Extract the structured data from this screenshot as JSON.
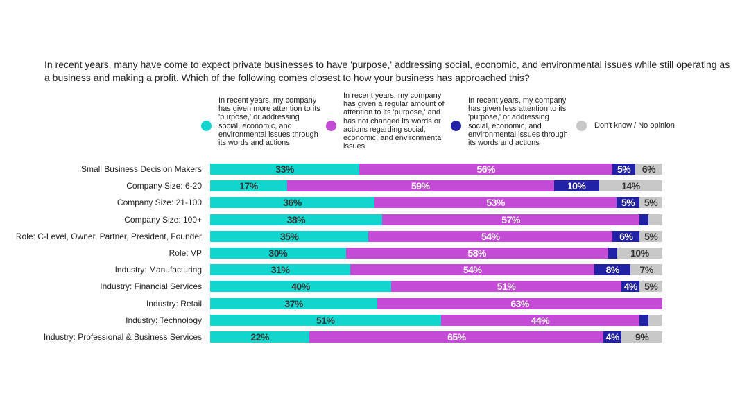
{
  "chart_data": {
    "type": "bar",
    "orientation": "horizontal",
    "stacked": true,
    "title": "In recent years, many have come to expect private businesses to have 'purpose,' addressing social, economic, and environmental issues while still operating as a business and making a profit. Which of the following comes closest to how your business has approached this?",
    "xlim": [
      0,
      100
    ],
    "grid": false,
    "legend_position": "top",
    "categories": [
      "Small Business Decision Makers",
      "Company Size: 6-20",
      "Company Size: 21-100",
      "Company Size: 100+",
      "Role: C-Level, Owner, Partner, President, Founder",
      "Role: VP",
      "Industry: Manufacturing",
      "Industry: Financial Services",
      "Industry: Retail",
      "Industry: Technology",
      "Industry: Professional & Business Services"
    ],
    "series": [
      {
        "name": "In recent years, my company has given more attention to its 'purpose,' or addressing social, economic, and environmental issues through its words and actions",
        "color": "#12d6ce",
        "label_color": "#333333",
        "values": [
          33,
          17,
          36,
          38,
          35,
          30,
          31,
          40,
          37,
          51,
          22
        ],
        "labels": [
          "33%",
          "17%",
          "36%",
          "38%",
          "35%",
          "30%",
          "31%",
          "40%",
          "37%",
          "51%",
          "22%"
        ]
      },
      {
        "name": "In recent years, my company has given a regular amount of attention to its 'purpose,' and has not changed its words or actions regarding social, economic, and environmental issues",
        "color": "#c44bd6",
        "label_color": "#ffffff",
        "values": [
          56,
          59,
          53,
          57,
          54,
          58,
          54,
          51,
          63,
          44,
          65
        ],
        "labels": [
          "56%",
          "59%",
          "53%",
          "57%",
          "54%",
          "58%",
          "54%",
          "51%",
          "63%",
          "44%",
          "65%"
        ]
      },
      {
        "name": "In recent years, my company has given less attention to its 'purpose,' or addressing social, economic, and environmental issues through its words and actions",
        "color": "#2222a6",
        "label_color": "#ffffff",
        "values": [
          5,
          10,
          5,
          2,
          6,
          2,
          8,
          4,
          0,
          2,
          4
        ],
        "labels": [
          "5%",
          "10%",
          "5%",
          "",
          "6%",
          "",
          "8%",
          "4%",
          "",
          "",
          "4%"
        ]
      },
      {
        "name": "Don't know / No opinion",
        "color": "#c8c8c8",
        "label_color": "#333333",
        "values": [
          6,
          14,
          5,
          3,
          5,
          10,
          7,
          5,
          0,
          3,
          9
        ],
        "labels": [
          "6%",
          "14%",
          "5%",
          "",
          "5%",
          "10%",
          "7%",
          "5%",
          "",
          "",
          "9%"
        ]
      }
    ]
  }
}
